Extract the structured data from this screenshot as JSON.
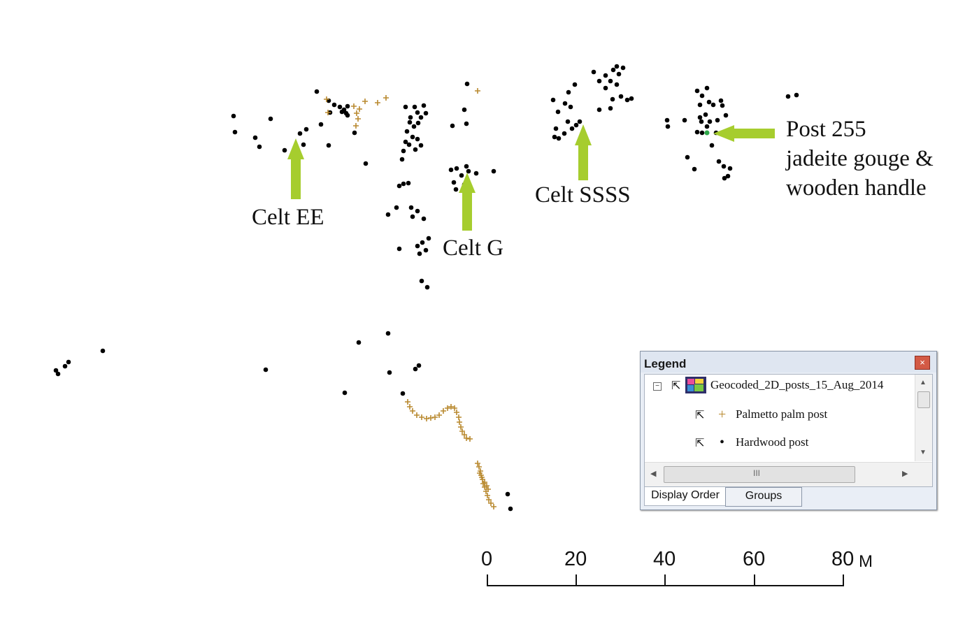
{
  "annotations": {
    "celt_ee": "Celt EE",
    "celt_g": "Celt G",
    "celt_ssss": "Celt SSSS",
    "post255_line1": "Post 255",
    "post255_line2": "jadeite gouge &",
    "post255_line3": "wooden handle"
  },
  "scale_bar": {
    "ticks": [
      "0",
      "20",
      "40",
      "60",
      "80"
    ],
    "unit": "M"
  },
  "legend": {
    "title": "Legend",
    "close_glyph": "×",
    "layer_name": "Geocoded_2D_posts_15_Aug_2014",
    "expander_glyph": "−",
    "items": [
      {
        "symbol": "+",
        "label": "Palmetto palm post",
        "color": "#b8892e"
      },
      {
        "symbol": "•",
        "label": "Hardwood post",
        "color": "#000000"
      }
    ],
    "tabs": [
      "Display Order",
      "Groups"
    ],
    "scroll_up": "▲",
    "scroll_down": "▼",
    "scroll_left": "◀",
    "scroll_right": "▶",
    "thumb_grip": "III"
  },
  "colors": {
    "hardwood_post": "#000000",
    "palmetto_post": "#b8892e",
    "arrow": "#a6cd2e",
    "post255_marker": "#2ea84a"
  }
}
